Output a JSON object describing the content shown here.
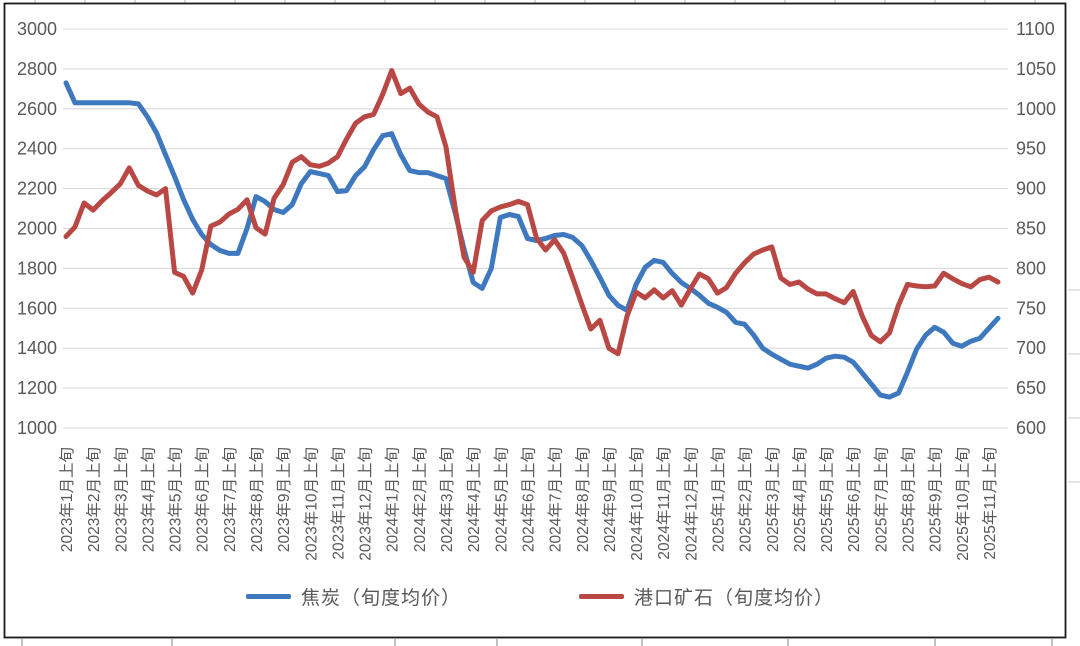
{
  "chart_data": {
    "type": "line",
    "title": "",
    "x_labels": [
      "2023年1月上旬",
      "2023年2月上旬",
      "2023年3月上旬",
      "2023年4月上旬",
      "2023年5月上旬",
      "2023年6月上旬",
      "2023年7月上旬",
      "2023年8月上旬",
      "2023年9月上旬",
      "2023年10月上旬",
      "2023年11月上旬",
      "2023年12月上旬",
      "2024年1月上旬",
      "2024年2月上旬",
      "2024年3月上旬",
      "2024年4月上旬",
      "2024年5月上旬",
      "2024年6月上旬",
      "2024年7月上旬",
      "2024年8月上旬",
      "2024年9月上旬",
      "2024年10月上旬",
      "2024年11月上旬",
      "2024年12月上旬",
      "2025年1月上旬",
      "2025年2月上旬",
      "2025年3月上旬",
      "2025年4月上旬",
      "2025年5月上旬",
      "2025年6月上旬",
      "2025年7月上旬",
      "2025年8月上旬",
      "2025年9月上旬",
      "2025年10月上旬",
      "2025年11月上旬"
    ],
    "points_per_label": 3,
    "left_axis": {
      "min": 1000,
      "max": 3000,
      "step": 200,
      "ticks": [
        "3000",
        "2800",
        "2600",
        "2400",
        "2200",
        "2000",
        "1800",
        "1600",
        "1400",
        "1200",
        "1000"
      ]
    },
    "right_axis": {
      "min": 600,
      "max": 1100,
      "step": 50,
      "ticks": [
        "1100",
        "1050",
        "1000",
        "950",
        "900",
        "850",
        "800",
        "750",
        "700",
        "650",
        "600"
      ]
    },
    "grid": true,
    "legend_position": "bottom",
    "series": [
      {
        "name": "焦炭（旬度均价）",
        "axis": "left",
        "color": "#3E78BE",
        "values": [
          2730,
          2630,
          2630,
          2630,
          2630,
          2630,
          2630,
          2630,
          2625,
          2560,
          2480,
          2370,
          2260,
          2145,
          2045,
          1970,
          1920,
          1890,
          1875,
          1875,
          2000,
          2160,
          2135,
          2095,
          2080,
          2120,
          2225,
          2285,
          2275,
          2265,
          2185,
          2190,
          2265,
          2310,
          2395,
          2465,
          2475,
          2370,
          2290,
          2280,
          2280,
          2265,
          2250,
          2080,
          1895,
          1730,
          1700,
          1800,
          2055,
          2070,
          2060,
          1950,
          1940,
          1950,
          1965,
          1970,
          1955,
          1915,
          1840,
          1755,
          1665,
          1615,
          1590,
          1720,
          1805,
          1840,
          1830,
          1775,
          1730,
          1700,
          1665,
          1625,
          1605,
          1580,
          1530,
          1520,
          1465,
          1400,
          1370,
          1345,
          1320,
          1310,
          1300,
          1320,
          1350,
          1360,
          1355,
          1330,
          1275,
          1220,
          1165,
          1155,
          1175,
          1280,
          1395,
          1465,
          1505,
          1480,
          1425,
          1410,
          1435,
          1450,
          1500,
          1550
        ]
      },
      {
        "name": "港口矿石（旬度均价）",
        "axis": "right",
        "color": "#B94743",
        "values": [
          840,
          852,
          882,
          873,
          885,
          895,
          906,
          926,
          904,
          897,
          892,
          900,
          795,
          790,
          769,
          798,
          853,
          858,
          868,
          874,
          886,
          851,
          843,
          888,
          905,
          933,
          940,
          930,
          928,
          932,
          940,
          962,
          982,
          990,
          993,
          1018,
          1048,
          1019,
          1026,
          1006,
          996,
          990,
          952,
          876,
          814,
          795,
          860,
          872,
          877,
          880,
          884,
          880,
          838,
          823,
          836,
          819,
          788,
          755,
          724,
          735,
          700,
          693,
          740,
          770,
          763,
          773,
          763,
          772,
          754,
          774,
          793,
          787,
          769,
          776,
          794,
          807,
          818,
          823,
          827,
          788,
          780,
          783,
          774,
          768,
          768,
          762,
          757,
          771,
          740,
          716,
          708,
          719,
          754,
          780,
          778,
          777,
          778,
          794,
          787,
          781,
          777,
          786,
          789,
          783
        ]
      }
    ]
  },
  "frame": {
    "border_color": "#1a1a1a",
    "gridline_color": "#d9d9d9",
    "axis_text_color": "#595959"
  }
}
